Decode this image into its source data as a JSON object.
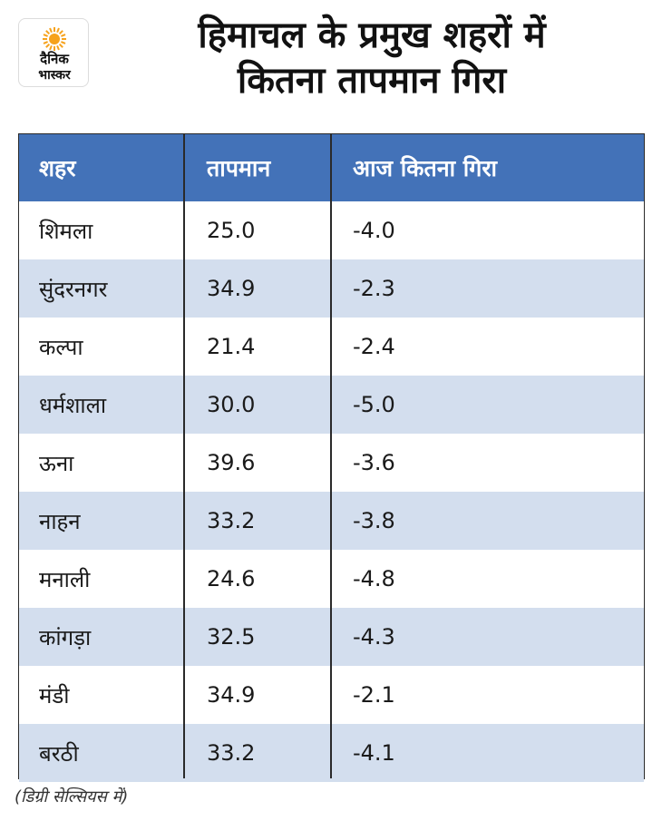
{
  "logo": {
    "brand_line1": "दैनिक",
    "brand_line2": "भास्कर",
    "sun_color": "#f6a21c"
  },
  "title": {
    "line1": "हिमाचल के प्रमुख शहरों में",
    "line2": "कितना तापमान गिरा"
  },
  "colors": {
    "header_bg": "#4372b8",
    "alt_row_bg": "#d3deee",
    "border": "#2a2a2a"
  },
  "chart_data": {
    "type": "table",
    "columns": [
      "शहर",
      "तापमान",
      "आज कितना गिरा"
    ],
    "rows": [
      [
        "शिमला",
        "25.0",
        "-4.0"
      ],
      [
        "सुंदरनगर",
        "34.9",
        "-2.3"
      ],
      [
        "कल्पा",
        "21.4",
        "-2.4"
      ],
      [
        "धर्मशाला",
        "30.0",
        "-5.0"
      ],
      [
        "ऊना",
        "39.6",
        "-3.6"
      ],
      [
        "नाहन",
        "33.2",
        "-3.8"
      ],
      [
        "मनाली",
        "24.6",
        "-4.8"
      ],
      [
        "कांगड़ा",
        "32.5",
        "-4.3"
      ],
      [
        "मंडी",
        "34.9",
        "-2.1"
      ],
      [
        "बरठी",
        "33.2",
        "-4.1"
      ]
    ]
  },
  "footnote": "(डिग्री सेल्सियस में)"
}
